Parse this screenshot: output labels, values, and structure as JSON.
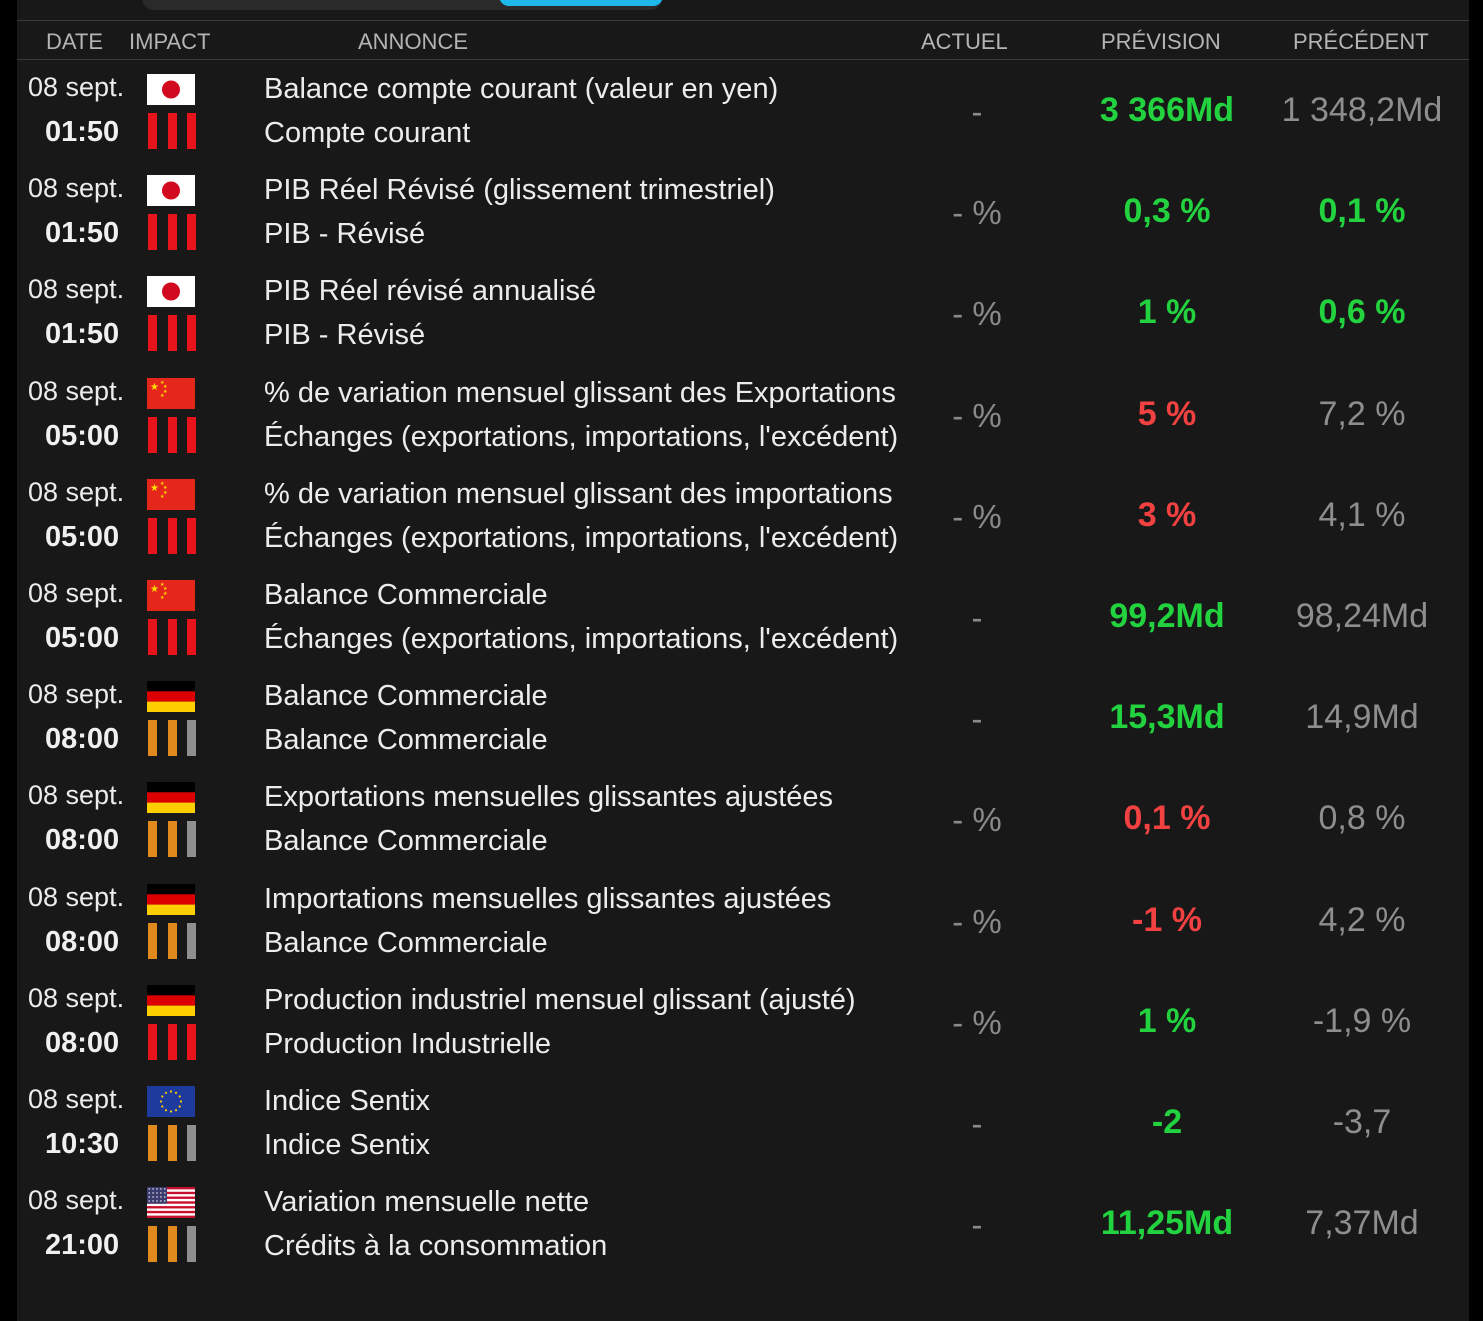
{
  "colors": {
    "positive": "#22d33f",
    "negative": "#f24141",
    "neutral": "#8e8e8e",
    "impact_high": "#e8141c",
    "impact_medium": "#e08a1e",
    "impact_off": "#8f8f8f",
    "accent": "#1fb8ea"
  },
  "header": {
    "date": "DATE",
    "impact": "IMPACT",
    "annonce": "ANNONCE",
    "actuel": "ACTUEL",
    "prevision": "PRÉVISION",
    "precedent": "PRÉCÉDENT"
  },
  "events": [
    {
      "date": "08 sept.",
      "time": "01:50",
      "flag": "jp",
      "impact": 3,
      "title": "Balance compte courant (valeur en yen)",
      "category": "Compte courant",
      "actual": "-",
      "forecast": "3 366Md",
      "forecast_color": "positive",
      "previous": "1 348,2Md",
      "previous_color": "neutral"
    },
    {
      "date": "08 sept.",
      "time": "01:50",
      "flag": "jp",
      "impact": 3,
      "title": "PIB Réel Révisé (glissement trimestriel)",
      "category": "PIB - Révisé",
      "actual": "- %",
      "forecast": "0,3 %",
      "forecast_color": "positive",
      "previous": "0,1 %",
      "previous_color": "positive"
    },
    {
      "date": "08 sept.",
      "time": "01:50",
      "flag": "jp",
      "impact": 3,
      "title": "PIB Réel révisé annualisé",
      "category": "PIB - Révisé",
      "actual": "- %",
      "forecast": "1 %",
      "forecast_color": "positive",
      "previous": "0,6 %",
      "previous_color": "positive"
    },
    {
      "date": "08 sept.",
      "time": "05:00",
      "flag": "cn",
      "impact": 3,
      "title": "% de variation mensuel glissant des Exportations",
      "category": "Échanges (exportations, importations, l'excédent)",
      "actual": "- %",
      "forecast": "5 %",
      "forecast_color": "negative",
      "previous": "7,2 %",
      "previous_color": "neutral"
    },
    {
      "date": "08 sept.",
      "time": "05:00",
      "flag": "cn",
      "impact": 3,
      "title": "% de variation mensuel glissant des importations",
      "category": "Échanges (exportations, importations, l'excédent)",
      "actual": "- %",
      "forecast": "3 %",
      "forecast_color": "negative",
      "previous": "4,1 %",
      "previous_color": "neutral"
    },
    {
      "date": "08 sept.",
      "time": "05:00",
      "flag": "cn",
      "impact": 3,
      "title": "Balance Commerciale",
      "category": "Échanges (exportations, importations, l'excédent)",
      "actual": "-",
      "forecast": "99,2Md",
      "forecast_color": "positive",
      "previous": "98,24Md",
      "previous_color": "neutral"
    },
    {
      "date": "08 sept.",
      "time": "08:00",
      "flag": "de",
      "impact": 2,
      "title": "Balance Commerciale",
      "category": "Balance Commerciale",
      "actual": "-",
      "forecast": "15,3Md",
      "forecast_color": "positive",
      "previous": "14,9Md",
      "previous_color": "neutral"
    },
    {
      "date": "08 sept.",
      "time": "08:00",
      "flag": "de",
      "impact": 2,
      "title": "Exportations mensuelles glissantes ajustées",
      "category": "Balance Commerciale",
      "actual": "- %",
      "forecast": "0,1 %",
      "forecast_color": "negative",
      "previous": "0,8 %",
      "previous_color": "neutral"
    },
    {
      "date": "08 sept.",
      "time": "08:00",
      "flag": "de",
      "impact": 2,
      "title": "Importations mensuelles glissantes ajustées",
      "category": "Balance Commerciale",
      "actual": "- %",
      "forecast": "-1 %",
      "forecast_color": "negative",
      "previous": "4,2 %",
      "previous_color": "neutral"
    },
    {
      "date": "08 sept.",
      "time": "08:00",
      "flag": "de",
      "impact": 3,
      "title": "Production industriel mensuel glissant (ajusté)",
      "category": "Production Industrielle",
      "actual": "- %",
      "forecast": "1 %",
      "forecast_color": "positive",
      "previous": "-1,9 %",
      "previous_color": "neutral"
    },
    {
      "date": "08 sept.",
      "time": "10:30",
      "flag": "eu",
      "impact": 2,
      "title": "Indice Sentix",
      "category": "Indice Sentix",
      "actual": "-",
      "forecast": "-2",
      "forecast_color": "positive",
      "previous": "-3,7",
      "previous_color": "neutral"
    },
    {
      "date": "08 sept.",
      "time": "21:00",
      "flag": "us",
      "impact": 2,
      "title": "Variation mensuelle nette",
      "category": "Crédits à la consommation",
      "actual": "-",
      "forecast": "11,25Md",
      "forecast_color": "positive",
      "previous": "7,37Md",
      "previous_color": "neutral"
    }
  ]
}
